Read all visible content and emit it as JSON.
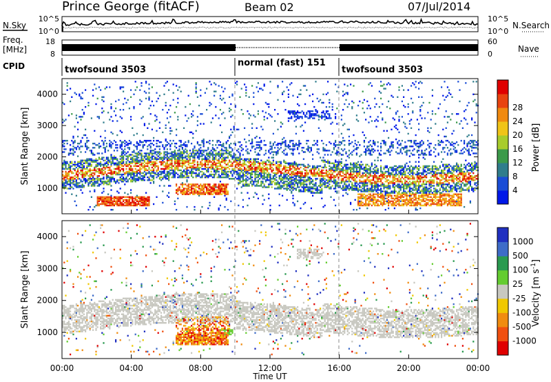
{
  "header": {
    "station": "Prince George (fitACF)",
    "beam": "Beam 02",
    "date": "07/Jul/2014"
  },
  "labels": {
    "nsky": "N.Sky",
    "nsearch": "N.Search",
    "freq": "Freq.",
    "freq_unit": "[MHz]",
    "nave": "Nave",
    "cpid": "CPID",
    "xlabel": "Time UT"
  },
  "noise_ticks": {
    "left": [
      "10^5",
      "10^0"
    ],
    "right": [
      "10^5",
      "10^0"
    ]
  },
  "freq_ticks": {
    "left": [
      "18",
      "8"
    ],
    "right": [
      "60",
      "0"
    ]
  },
  "cpid_segments": [
    {
      "label": "twofsound 3503",
      "start": 0,
      "end": 10
    },
    {
      "label": "normal (fast) 151",
      "start": 10,
      "end": 16
    },
    {
      "label": "twofsound 3503",
      "start": 16,
      "end": 24
    }
  ],
  "x_ticks": [
    "00:00",
    "04:00",
    "08:00",
    "12:00",
    "16:00",
    "20:00",
    "00:00"
  ],
  "range_ticks": [
    "1000",
    "2000",
    "3000",
    "4000"
  ],
  "power_panel": {
    "ylabel": "Slant Range [km]",
    "cbar_label": "Power [dB]",
    "cbar_ticks": [
      "4",
      "8",
      "12",
      "16",
      "20",
      "24",
      "28"
    ],
    "colors": [
      "#0018e8",
      "#1a4dd6",
      "#2f7d8c",
      "#3c9a4a",
      "#a8cc2c",
      "#f0c418",
      "#f08a10",
      "#e84410",
      "#e00000"
    ]
  },
  "velocity_panel": {
    "ylabel": "Slant Range [km]",
    "cbar_label": "Velocity [m s",
    "cbar_label_sup": "-1",
    "cbar_label_end": "]",
    "cbar_ticks": [
      "1000",
      "500",
      "100",
      "25",
      "-25",
      "-100",
      "-500",
      "-1000"
    ],
    "colors": [
      "#2030c0",
      "#3e6cc8",
      "#2a9a50",
      "#64cc30",
      "#c8c8c0",
      "#f0c800",
      "#f08c10",
      "#f05010",
      "#e00000"
    ]
  },
  "chart_data": {
    "type": "heatmap",
    "title": "Prince George (fitACF)  Beam 02  07/Jul/2014",
    "xlabel": "Time UT",
    "ylabel": "Slant Range [km]",
    "x_range_hours": [
      0,
      24
    ],
    "y_range_km": [
      180,
      4500
    ],
    "panels": [
      {
        "name": "Power",
        "unit": "dB",
        "colorbar_range": [
          0,
          32
        ],
        "scatter_regions": [
          {
            "t": [
              0,
              24
            ],
            "r": [
              1000,
              2300
            ],
            "value": "8-30"
          },
          {
            "t": [
              2,
              5
            ],
            "r": [
              400,
              700
            ],
            "value": "28-32"
          },
          {
            "t": [
              6.5,
              9.5
            ],
            "r": [
              800,
              1100
            ],
            "value": "24-30"
          },
          {
            "t": [
              17,
              23
            ],
            "r": [
              400,
              800
            ],
            "value": "20-28"
          },
          {
            "t": [
              10,
              16
            ],
            "r": [
              2000,
              2500
            ],
            "value": "4-12"
          }
        ]
      },
      {
        "name": "Velocity",
        "unit": "m s^-1",
        "colorbar_range": [
          -1000,
          1000
        ],
        "scatter_regions": [
          {
            "t": [
              0,
              24
            ],
            "r": [
              1000,
              2300
            ],
            "value": "-25 to 25"
          },
          {
            "t": [
              6.5,
              9.5
            ],
            "r": [
              600,
              1500
            ],
            "value": "-100 to -1000"
          },
          {
            "t": [
              13.5,
              15
            ],
            "r": [
              3300,
              3600
            ],
            "value": "-25 to 25"
          }
        ]
      }
    ],
    "noise_series": {
      "nsky_level": "10^2 to 10^3 (log scale 10^0-10^5)",
      "nsearch_level": "10^1 to 10^2"
    },
    "frequency_mhz": {
      "0-10": 11,
      "10-16": 11,
      "16-24": 11
    },
    "nave": {
      "0-10": 0,
      "10-16": 0,
      "16-24": 0
    }
  }
}
